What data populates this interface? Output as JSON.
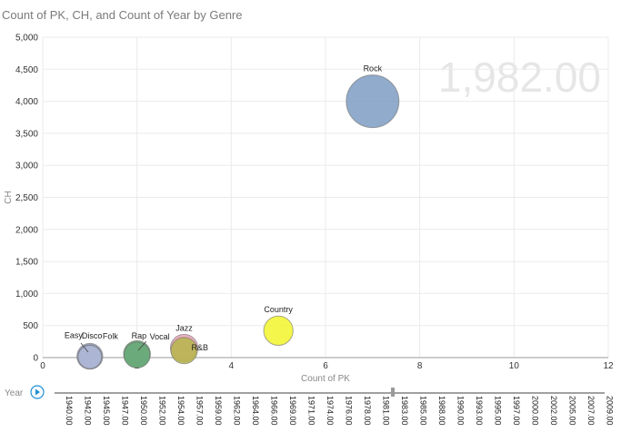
{
  "chart_data": {
    "type": "scatter",
    "title": "Count of PK, CH, and Count of Year by Genre",
    "xlabel": "Count of PK",
    "ylabel": "CH",
    "xlim": [
      0,
      12
    ],
    "ylim": [
      0,
      5000
    ],
    "x_ticks": [
      "0",
      "2",
      "4",
      "6",
      "8",
      "10",
      "12"
    ],
    "y_ticks": [
      "0",
      "500",
      "1,000",
      "1,500",
      "2,000",
      "2,500",
      "3,000",
      "3,500",
      "4,000",
      "4,500",
      "5,000"
    ],
    "current_value": "1,982.00",
    "grid": true,
    "size_measure": "Count of Year",
    "points": [
      {
        "label": "Rock",
        "x": 7,
        "y": 4000,
        "size": 1.0,
        "color": "#7c9cc2"
      },
      {
        "label": "Country",
        "x": 5,
        "y": 420,
        "size": 0.31,
        "color": "#f2f52b"
      },
      {
        "label": "Jazz",
        "x": 3,
        "y": 150,
        "size": 0.27,
        "color": "#e8a3b5"
      },
      {
        "label": "R&B",
        "x": 3,
        "y": 110,
        "size": 0.25,
        "color": "#b5b54a"
      },
      {
        "label": "Vocal",
        "x": 2,
        "y": 55,
        "size": 0.26,
        "color": "#5aa06a"
      },
      {
        "label": "Rap",
        "x": 2,
        "y": 40,
        "size": 0.24,
        "color": "#6aaa7a"
      },
      {
        "label": "Easy",
        "x": 1,
        "y": 20,
        "size": 0.24,
        "color": "#9aa5c8"
      },
      {
        "label": "Disco",
        "x": 1,
        "y": 15,
        "size": 0.2,
        "color": "#b4bcd8"
      },
      {
        "label": "Folk",
        "x": 1,
        "y": 10,
        "size": 0.2,
        "color": "#aab4d2"
      }
    ]
  },
  "play_axis": {
    "label": "Year",
    "current": 1982,
    "years": [
      "1940.00",
      "1942.00",
      "1945.00",
      "1947.00",
      "1950.00",
      "1952.00",
      "1954.00",
      "1957.00",
      "1959.00",
      "1962.00",
      "1964.00",
      "1966.00",
      "1969.00",
      "1971.00",
      "1974.00",
      "1976.00",
      "1978.00",
      "1981.00",
      "1983.00",
      "1985.00",
      "1988.00",
      "1990.00",
      "1993.00",
      "1995.00",
      "1997.00",
      "2000.00",
      "2002.00",
      "2005.00",
      "2007.00",
      "2009.00"
    ]
  },
  "colors": {
    "grid": "#ebebeb",
    "axis": "#9a9a9a",
    "play_button": "#1e90d6"
  }
}
